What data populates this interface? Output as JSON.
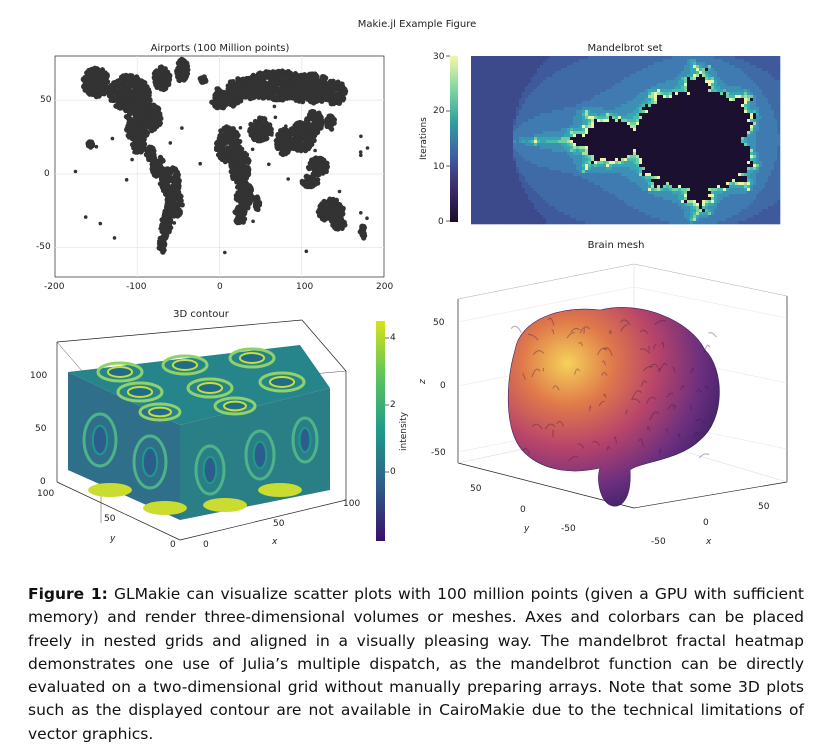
{
  "figure": {
    "suptitle": "Makie.jl Example Figure",
    "caption_label": "Figure 1:",
    "caption_text": "GLMakie can visualize scatter plots with 100 million points (given a GPU with sufficient memory) and render three-dimensional volumes or meshes. Axes and colorbars can be placed freely in nested grids and aligned in a visually pleasing way. The mandelbrot fractal heatmap demonstrates one use of Julia’s multiple dispatch, as the mandelbrot function can be directly evaluated on a two-dimensional grid without manually preparing arrays. Note that some 3D plots such as the displayed contour are not available in CairoMakie due to the technical limitations of vector graphics."
  },
  "chart_data": [
    {
      "type": "scatter",
      "title": "Airports (100 Million points)",
      "xticks": [
        "-200",
        "-100",
        "0",
        "100",
        "200"
      ],
      "yticks": [
        "50",
        "0",
        "-50"
      ],
      "xlim": [
        -200,
        200
      ],
      "ylim": [
        -70,
        80
      ],
      "grid": true,
      "color": "#333333"
    },
    {
      "type": "heatmap",
      "title": "Mandelbrot set",
      "colorbar_label": "Iterations",
      "colorbar_ticks": [
        "30",
        "20",
        "10",
        "0"
      ],
      "colorbar_range": [
        0,
        30
      ],
      "colormap": [
        "#1a0c2e",
        "#3b2a6b",
        "#3f5fa0",
        "#2fa0a0",
        "#7fd6a0",
        "#f4f7a8"
      ]
    },
    {
      "type": "heatmap",
      "title": "3D contour",
      "xlabel": "x",
      "ylabel": "y",
      "xticks": [
        "0",
        "50",
        "100"
      ],
      "yticks": [
        "100",
        "50",
        "0"
      ],
      "zticks": [
        "100",
        "50",
        "0"
      ],
      "colorbar_label": "intensity",
      "colorbar_ticks": [
        "4",
        "2",
        "0"
      ],
      "colormap": [
        "#3a0f6b",
        "#2f5d8a",
        "#1f9a8a",
        "#5cc55c",
        "#d8e219"
      ]
    },
    {
      "type": "other",
      "title": "Brain mesh",
      "xlabel": "x",
      "ylabel": "y",
      "zlabel": "z",
      "xticks": [
        "50",
        "0",
        "-50"
      ],
      "yticks": [
        "50",
        "0",
        "-50"
      ],
      "zticks": [
        "50",
        "0",
        "-50"
      ],
      "colormap": [
        "#2b1b5e",
        "#6b2f7e",
        "#b8446a",
        "#e07a4a",
        "#f5d25a"
      ]
    }
  ]
}
